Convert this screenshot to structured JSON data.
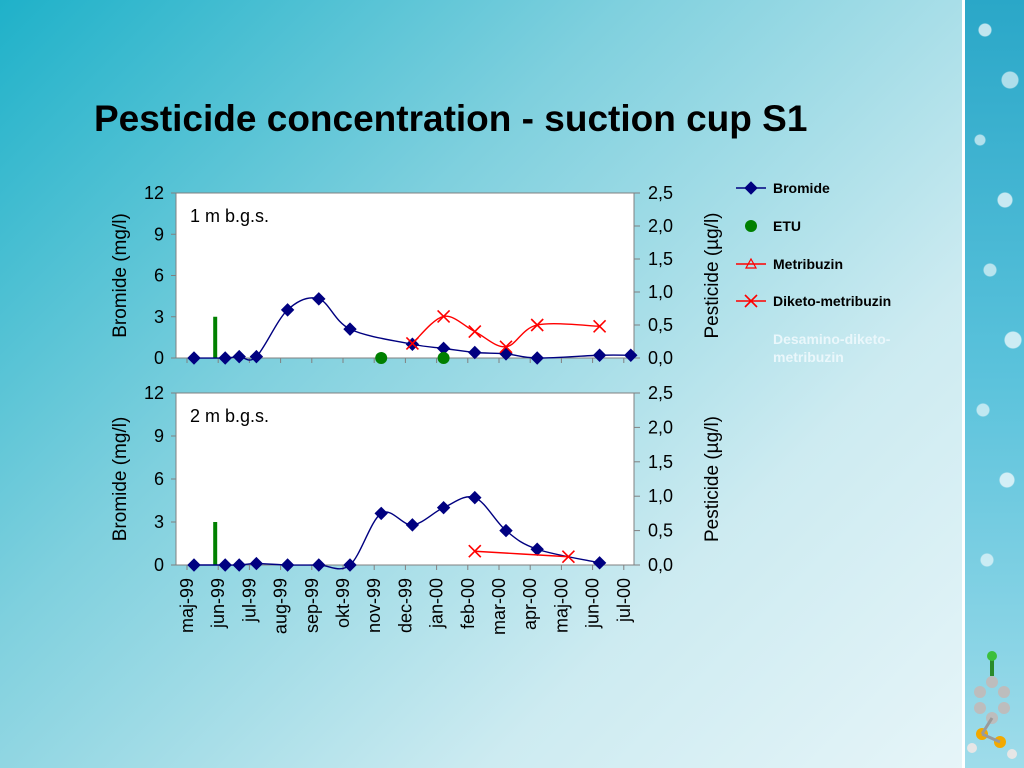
{
  "title": "Pesticide concentration - suction cup S1",
  "colors": {
    "bromide": "#000080",
    "etu": "#008000",
    "metribuzin": "#ff0000",
    "diketo": "#ff0000",
    "desamino": "#ffffff"
  },
  "chart_data": [
    {
      "type": "line",
      "panel_label": "1 m b.g.s.",
      "left_axis": {
        "label": "Bromide (mg/l)",
        "ticks": [
          "0",
          "3",
          "6",
          "9",
          "12"
        ],
        "ylim": [
          0,
          12
        ]
      },
      "right_axis": {
        "label": "Pesticide (µg/l)",
        "ticks": [
          "0,0",
          "0,5",
          "1,0",
          "1,5",
          "2,0",
          "2,5"
        ],
        "ylim": [
          0,
          2.5
        ]
      },
      "x_categories": [
        "maj-99",
        "jun-99",
        "jul-99",
        "aug-99",
        "sep-99",
        "okt-99",
        "nov-99",
        "dec-99",
        "jan-00",
        "feb-00",
        "mar-00",
        "apr-00",
        "maj-00",
        "jun-00",
        "jul-00"
      ],
      "series": [
        {
          "name": "Bromide",
          "axis": "left",
          "marker": "diamond",
          "color": "#000080",
          "points": [
            [
              "maj-99",
              0
            ],
            [
              "jun-99",
              0
            ],
            [
              "jun-99",
              0.1
            ],
            [
              "jul-99",
              0.1
            ],
            [
              "aug-99",
              3.5
            ],
            [
              "sep-99",
              4.3
            ],
            [
              "okt-99",
              2.1
            ],
            [
              "dec-99",
              1.0
            ],
            [
              "jan-00",
              0.7
            ],
            [
              "feb-00",
              0.4
            ],
            [
              "mar-00",
              0.3
            ],
            [
              "apr-00",
              0.0
            ],
            [
              "jun-00",
              0.2
            ],
            [
              "jul-00",
              0.2
            ]
          ]
        },
        {
          "name": "ETU",
          "axis": "right",
          "marker": "circle",
          "color": "#008000",
          "points": [
            [
              "nov-99",
              0.0
            ],
            [
              "jan-00",
              0.0
            ]
          ]
        },
        {
          "name": "Diketo-metribuzin",
          "axis": "right",
          "marker": "x",
          "color": "#ff0000",
          "points": [
            [
              "dec-99",
              0.22
            ],
            [
              "jan-00",
              0.63
            ],
            [
              "feb-00",
              0.4
            ],
            [
              "mar-00",
              0.17
            ],
            [
              "apr-00",
              0.5
            ],
            [
              "jun-00",
              0.48
            ]
          ]
        }
      ],
      "application_marker": {
        "x": "jun-99",
        "value": 3.0,
        "axis": "left",
        "color": "#008000"
      }
    },
    {
      "type": "line",
      "panel_label": "2 m b.g.s.",
      "left_axis": {
        "label": "Bromide (mg/l)",
        "ticks": [
          "0",
          "3",
          "6",
          "9",
          "12"
        ],
        "ylim": [
          0,
          12
        ]
      },
      "right_axis": {
        "label": "Pesticide (µg/l)",
        "ticks": [
          "0,0",
          "0,5",
          "1,0",
          "1,5",
          "2,0",
          "2,5"
        ],
        "ylim": [
          0,
          2.5
        ]
      },
      "x_categories": [
        "maj-99",
        "jun-99",
        "jul-99",
        "aug-99",
        "sep-99",
        "okt-99",
        "nov-99",
        "dec-99",
        "jan-00",
        "feb-00",
        "mar-00",
        "apr-00",
        "maj-00",
        "jun-00",
        "jul-00"
      ],
      "series": [
        {
          "name": "Bromide",
          "axis": "left",
          "marker": "diamond",
          "color": "#000080",
          "points": [
            [
              "maj-99",
              0
            ],
            [
              "jun-99",
              0
            ],
            [
              "jun-99",
              0
            ],
            [
              "jul-99",
              0.1
            ],
            [
              "aug-99",
              0
            ],
            [
              "sep-99",
              0
            ],
            [
              "okt-99",
              0
            ],
            [
              "nov-99",
              3.6
            ],
            [
              "dec-99",
              2.8
            ],
            [
              "jan-00",
              4.0
            ],
            [
              "feb-00",
              4.7
            ],
            [
              "mar-00",
              2.4
            ],
            [
              "apr-00",
              1.1
            ],
            [
              "jun-00",
              0.15
            ]
          ]
        },
        {
          "name": "Diketo-metribuzin",
          "axis": "right",
          "marker": "x",
          "color": "#ff0000",
          "points": [
            [
              "feb-00",
              0.2
            ],
            [
              "maj-00",
              0.12
            ]
          ]
        }
      ],
      "application_marker": {
        "x": "jun-99",
        "value": 3.0,
        "axis": "left",
        "color": "#008000"
      }
    }
  ],
  "legend": [
    {
      "name": "Bromide",
      "marker": "diamond",
      "color": "#000080"
    },
    {
      "name": "ETU",
      "marker": "circle",
      "color": "#008000"
    },
    {
      "name": "Metribuzin",
      "marker": "triangle",
      "color": "#ff0000"
    },
    {
      "name": "Diketo-metribuzin",
      "marker": "x",
      "color": "#ff0000"
    },
    {
      "name": "Desamino-diketo-metribuzin",
      "marker": "none",
      "color": "#ffffff"
    }
  ],
  "legend_text_lines": {
    "desamino_line1": "Desamino-diketo-",
    "desamino_line2": "metribuzin"
  }
}
